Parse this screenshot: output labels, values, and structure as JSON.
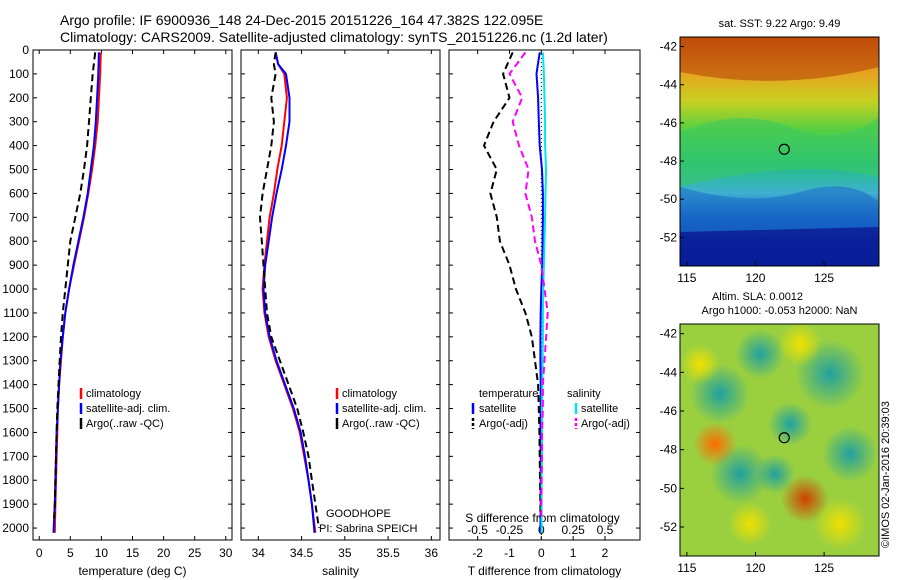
{
  "title": {
    "line1": "Argo profile: IF 6900936_148 24-Dec-2015 20151226_164 47.382S 122.095E",
    "line2": "Climatology: CARS2009. Satellite-adjusted climatology: synTS_20151226.nc (1.2d later)"
  },
  "colors": {
    "climatology": "#ff0000",
    "satellite": "#0000ff",
    "argo": "#000000",
    "sat_salinity": "#00e5ee",
    "argo_salinity": "#ff00ff"
  },
  "chart_data": [
    {
      "type": "line",
      "xlabel": "temperature (deg C)",
      "ylabel": "",
      "xlim": [
        -1,
        31
      ],
      "ylim": [
        2050,
        0
      ],
      "xticks": [
        0,
        5,
        10,
        15,
        20,
        25,
        30
      ],
      "yticks": [
        0,
        100,
        200,
        300,
        400,
        500,
        600,
        700,
        800,
        900,
        1000,
        1100,
        1200,
        1300,
        1400,
        1500,
        1600,
        1700,
        1800,
        1900,
        2000
      ],
      "legend": [
        "climatology",
        "satellite-adj. clim.",
        "Argo(..raw -QC)"
      ],
      "legend_position": "lower-right",
      "series": [
        {
          "name": "climatology",
          "style": "solid",
          "color": "#ff0000",
          "points": [
            [
              9.9,
              10
            ],
            [
              9.8,
              100
            ],
            [
              9.6,
              200
            ],
            [
              9.4,
              300
            ],
            [
              9.0,
              400
            ],
            [
              8.5,
              500
            ],
            [
              7.9,
              600
            ],
            [
              7.2,
              700
            ],
            [
              6.4,
              800
            ],
            [
              5.6,
              900
            ],
            [
              4.8,
              1000
            ],
            [
              4.2,
              1100
            ],
            [
              3.8,
              1200
            ],
            [
              3.5,
              1300
            ],
            [
              3.2,
              1400
            ],
            [
              3.0,
              1500
            ],
            [
              2.9,
              1600
            ],
            [
              2.8,
              1700
            ],
            [
              2.7,
              1800
            ],
            [
              2.6,
              1900
            ],
            [
              2.5,
              2020
            ]
          ]
        },
        {
          "name": "satellite-adj. clim.",
          "style": "solid",
          "color": "#0000ff",
          "points": [
            [
              9.6,
              10
            ],
            [
              9.5,
              100
            ],
            [
              9.3,
              200
            ],
            [
              9.1,
              300
            ],
            [
              8.8,
              400
            ],
            [
              8.3,
              500
            ],
            [
              7.8,
              600
            ],
            [
              7.1,
              700
            ],
            [
              6.3,
              800
            ],
            [
              5.5,
              900
            ],
            [
              4.8,
              1000
            ],
            [
              4.2,
              1100
            ],
            [
              3.8,
              1200
            ],
            [
              3.4,
              1300
            ],
            [
              3.2,
              1400
            ],
            [
              3.0,
              1500
            ],
            [
              2.8,
              1600
            ],
            [
              2.7,
              1700
            ],
            [
              2.6,
              1800
            ],
            [
              2.5,
              1900
            ],
            [
              2.3,
              2020
            ]
          ]
        },
        {
          "name": "Argo(..raw -QC)",
          "style": "dashed",
          "color": "#000000",
          "points": [
            [
              9.0,
              10
            ],
            [
              8.6,
              100
            ],
            [
              8.3,
              200
            ],
            [
              8.0,
              300
            ],
            [
              7.7,
              400
            ],
            [
              7.2,
              500
            ],
            [
              6.6,
              600
            ],
            [
              5.8,
              700
            ],
            [
              5.0,
              800
            ],
            [
              4.6,
              900
            ],
            [
              4.2,
              1000
            ],
            [
              3.8,
              1100
            ],
            [
              3.5,
              1200
            ],
            [
              3.3,
              1300
            ],
            [
              3.1,
              1400
            ],
            [
              2.9,
              1500
            ],
            [
              2.8,
              1600
            ],
            [
              2.7,
              1700
            ],
            [
              2.6,
              1800
            ],
            [
              2.5,
              1900
            ],
            [
              2.4,
              1960
            ]
          ]
        }
      ]
    },
    {
      "type": "line",
      "xlabel": "salinity",
      "ylabel": "",
      "xlim": [
        33.8,
        36.1
      ],
      "ylim": [
        2050,
        0
      ],
      "xticks": [
        34,
        34.5,
        35,
        35.5,
        36
      ],
      "legend": [
        "climatology",
        "satellite-adj. clim.",
        "Argo(..raw -QC)"
      ],
      "legend_position": "lower-right",
      "annotations": [
        "GOODHOPE",
        "PI: Sabrina SPEICH"
      ],
      "series": [
        {
          "name": "climatology",
          "style": "solid",
          "color": "#ff0000",
          "points": [
            [
              34.2,
              10
            ],
            [
              34.23,
              60
            ],
            [
              34.3,
              100
            ],
            [
              34.33,
              200
            ],
            [
              34.3,
              300
            ],
            [
              34.27,
              400
            ],
            [
              34.22,
              500
            ],
            [
              34.18,
              600
            ],
            [
              34.13,
              700
            ],
            [
              34.1,
              800
            ],
            [
              34.07,
              900
            ],
            [
              34.05,
              1000
            ],
            [
              34.07,
              1100
            ],
            [
              34.12,
              1200
            ],
            [
              34.2,
              1300
            ],
            [
              34.3,
              1400
            ],
            [
              34.4,
              1500
            ],
            [
              34.48,
              1600
            ],
            [
              34.53,
              1700
            ],
            [
              34.58,
              1800
            ],
            [
              34.62,
              1900
            ],
            [
              34.66,
              2020
            ]
          ]
        },
        {
          "name": "satellite-adj. clim.",
          "style": "solid",
          "color": "#0000ff",
          "points": [
            [
              34.2,
              10
            ],
            [
              34.23,
              60
            ],
            [
              34.32,
              100
            ],
            [
              34.36,
              200
            ],
            [
              34.36,
              300
            ],
            [
              34.32,
              400
            ],
            [
              34.27,
              500
            ],
            [
              34.21,
              600
            ],
            [
              34.16,
              700
            ],
            [
              34.12,
              800
            ],
            [
              34.08,
              900
            ],
            [
              34.06,
              1000
            ],
            [
              34.08,
              1100
            ],
            [
              34.13,
              1200
            ],
            [
              34.21,
              1300
            ],
            [
              34.31,
              1400
            ],
            [
              34.41,
              1500
            ],
            [
              34.49,
              1600
            ],
            [
              34.54,
              1700
            ],
            [
              34.58,
              1800
            ],
            [
              34.62,
              1900
            ],
            [
              34.65,
              2020
            ]
          ]
        },
        {
          "name": "Argo(..raw -QC)",
          "style": "dashed",
          "color": "#000000",
          "points": [
            [
              34.2,
              10
            ],
            [
              34.18,
              60
            ],
            [
              34.2,
              100
            ],
            [
              34.15,
              200
            ],
            [
              34.18,
              300
            ],
            [
              34.15,
              400
            ],
            [
              34.1,
              500
            ],
            [
              34.05,
              600
            ],
            [
              34.02,
              700
            ],
            [
              34.04,
              800
            ],
            [
              34.06,
              900
            ],
            [
              34.08,
              1000
            ],
            [
              34.1,
              1100
            ],
            [
              34.15,
              1200
            ],
            [
              34.25,
              1300
            ],
            [
              34.35,
              1400
            ],
            [
              34.45,
              1500
            ],
            [
              34.52,
              1600
            ],
            [
              34.58,
              1700
            ],
            [
              34.62,
              1800
            ],
            [
              34.66,
              1900
            ],
            [
              34.7,
              2000
            ]
          ]
        }
      ]
    },
    {
      "type": "line",
      "xlabel": "T difference from climatology",
      "xlabel2": "S difference from climatology",
      "ylabel": "",
      "xlim": [
        -2.9,
        3.1
      ],
      "ylim": [
        2050,
        0
      ],
      "xticks": [
        -2,
        -1,
        0,
        1,
        2
      ],
      "xticks_top": [
        "-0.5",
        "-0.25",
        "0",
        "0.25",
        "0.5"
      ],
      "xticks_top_pos": [
        -2,
        -1,
        0,
        1,
        2
      ],
      "legend_temperature_title": "temperature",
      "legend_salinity_title": "salinity",
      "legend": [
        "satellite",
        "Argo(-adj)",
        "satellite",
        "Argo(-adj)"
      ],
      "legend_position": "lower-right",
      "series": [
        {
          "name": "temperature satellite",
          "style": "solid",
          "color": "#0000ff",
          "points": [
            [
              -0.05,
              10
            ],
            [
              -0.15,
              100
            ],
            [
              -0.1,
              200
            ],
            [
              -0.08,
              300
            ],
            [
              -0.05,
              400
            ],
            [
              0.02,
              500
            ],
            [
              0.05,
              600
            ],
            [
              0.05,
              700
            ],
            [
              0.04,
              800
            ],
            [
              0.03,
              900
            ],
            [
              0.0,
              1000
            ],
            [
              -0.02,
              1100
            ],
            [
              -0.03,
              1200
            ],
            [
              -0.03,
              1300
            ],
            [
              -0.02,
              1400
            ],
            [
              -0.02,
              1500
            ],
            [
              -0.03,
              1600
            ],
            [
              -0.02,
              1700
            ],
            [
              -0.02,
              1800
            ],
            [
              -0.02,
              1900
            ],
            [
              -0.03,
              2020
            ]
          ]
        },
        {
          "name": "temperature Argo(-adj)",
          "style": "dashed",
          "color": "#000000",
          "points": [
            [
              -0.9,
              10
            ],
            [
              -1.2,
              100
            ],
            [
              -1.0,
              200
            ],
            [
              -1.5,
              300
            ],
            [
              -1.8,
              400
            ],
            [
              -1.4,
              500
            ],
            [
              -1.6,
              600
            ],
            [
              -1.4,
              700
            ],
            [
              -1.3,
              800
            ],
            [
              -1.0,
              900
            ],
            [
              -0.8,
              1000
            ],
            [
              -0.5,
              1100
            ],
            [
              -0.3,
              1200
            ],
            [
              -0.2,
              1300
            ],
            [
              -0.1,
              1400
            ],
            [
              -0.08,
              1500
            ],
            [
              -0.06,
              1600
            ],
            [
              -0.05,
              1700
            ],
            [
              -0.04,
              1800
            ],
            [
              -0.03,
              1900
            ],
            [
              -0.03,
              1960
            ]
          ]
        },
        {
          "name": "salinity satellite",
          "style": "solid",
          "color": "#00e5ee",
          "points": [
            [
              0.05,
              10
            ],
            [
              0.08,
              100
            ],
            [
              0.1,
              200
            ],
            [
              0.12,
              300
            ],
            [
              0.12,
              400
            ],
            [
              0.15,
              500
            ],
            [
              0.13,
              600
            ],
            [
              0.12,
              700
            ],
            [
              0.1,
              800
            ],
            [
              0.08,
              900
            ],
            [
              0.06,
              1000
            ],
            [
              0.05,
              1100
            ],
            [
              0.05,
              1200
            ],
            [
              0.04,
              1300
            ],
            [
              0.03,
              1400
            ],
            [
              0.02,
              1500
            ],
            [
              0.02,
              1600
            ],
            [
              0.02,
              1700
            ],
            [
              0.01,
              1800
            ],
            [
              0.01,
              1900
            ],
            [
              0.01,
              2020
            ]
          ]
        },
        {
          "name": "salinity Argo(-adj)",
          "style": "dashed",
          "color": "#ff00ff",
          "points": [
            [
              -0.5,
              10
            ],
            [
              -1.0,
              100
            ],
            [
              -0.6,
              200
            ],
            [
              -0.9,
              300
            ],
            [
              -0.7,
              400
            ],
            [
              -0.4,
              500
            ],
            [
              -0.5,
              600
            ],
            [
              -0.3,
              700
            ],
            [
              -0.2,
              800
            ],
            [
              0.0,
              900
            ],
            [
              0.1,
              1000
            ],
            [
              0.2,
              1100
            ],
            [
              0.15,
              1200
            ],
            [
              0.1,
              1300
            ],
            [
              0.05,
              1400
            ],
            [
              0.05,
              1500
            ],
            [
              0.02,
              1600
            ],
            [
              0.02,
              1700
            ],
            [
              0.01,
              1800
            ],
            [
              0.0,
              1900
            ],
            [
              0.0,
              1960
            ]
          ]
        }
      ]
    },
    {
      "type": "heatmap",
      "title": "sat. SST: 9.22  Argo: 9.49",
      "xlim": [
        114.5,
        129
      ],
      "ylim": [
        -53.5,
        -41.5
      ],
      "xticks": [
        115,
        120,
        125
      ],
      "yticks": [
        -42,
        -44,
        -46,
        -48,
        -50,
        -52
      ],
      "marker": {
        "lon": 122.095,
        "lat": -47.382
      }
    },
    {
      "type": "heatmap",
      "title": "Altim. SLA: 0.0012",
      "subtitle": "Argo h1000: -0.053 h2000: NaN",
      "xlim": [
        114.5,
        129
      ],
      "ylim": [
        -53.5,
        -41.5
      ],
      "xticks": [
        115,
        120,
        125
      ],
      "yticks": [
        -42,
        -44,
        -46,
        -48,
        -50,
        -52
      ],
      "marker": {
        "lon": 122.095,
        "lat": -47.382
      },
      "side_label": "©IMOS 02-Jan-2016 20:39:03"
    }
  ]
}
